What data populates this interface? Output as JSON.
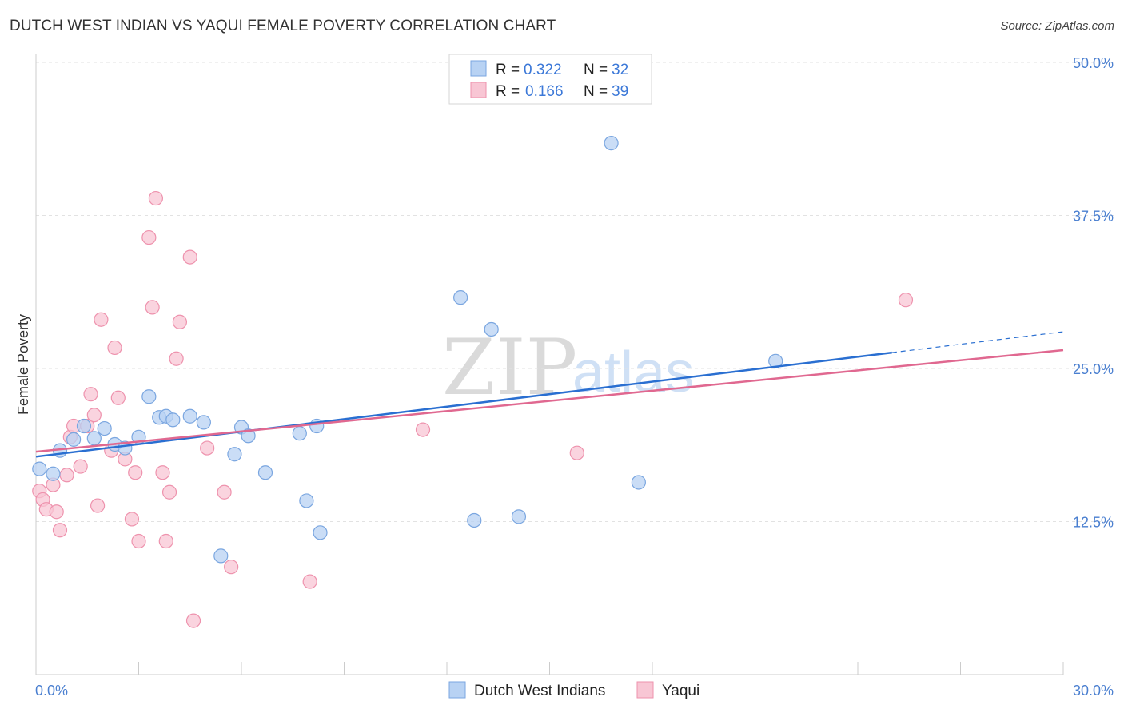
{
  "title": "DUTCH WEST INDIAN VS YAQUI FEMALE POVERTY CORRELATION CHART",
  "source": "Source: ZipAtlas.com",
  "watermark": {
    "zip": "ZIP",
    "atlas": "atlas"
  },
  "colors": {
    "blue_fill": "#b8d2f3",
    "blue_stroke": "#7aa6e0",
    "blue_line": "#2a6fd1",
    "pink_fill": "#f8c6d4",
    "pink_stroke": "#ee92ad",
    "pink_line": "#e06890",
    "grid": "#e2e2e2",
    "axis_text": "#4a7fd0"
  },
  "legend": {
    "rows": [
      {
        "r_label": "R = ",
        "r_value": "0.322",
        "n_label": "N = ",
        "n_value": "32"
      },
      {
        "r_label": "R = ",
        "r_value": "0.166",
        "n_label": "N = ",
        "n_value": "39"
      }
    ]
  },
  "chart_data": {
    "type": "scatter",
    "title": "DUTCH WEST INDIAN VS YAQUI FEMALE POVERTY CORRELATION CHART",
    "xlabel": "",
    "ylabel": "Female Poverty",
    "xlim": [
      0,
      30
    ],
    "ylim": [
      0,
      50
    ],
    "x_tick_labels": [
      "0.0%",
      "30.0%"
    ],
    "y_ticks": [
      12.5,
      25.0,
      37.5,
      50.0
    ],
    "y_tick_labels": [
      "12.5%",
      "25.0%",
      "37.5%",
      "50.0%"
    ],
    "grid": true,
    "legend_position": "top-center",
    "series": [
      {
        "name": "Dutch West Indians",
        "color": "#b8d2f3",
        "R": 0.322,
        "N": 32,
        "trend": {
          "x0": 0,
          "y0": 17.8,
          "x1": 25,
          "y1": 26.3,
          "dash_to_x": 30,
          "dash_to_y": 28.0
        },
        "points": [
          [
            0.1,
            16.8
          ],
          [
            0.5,
            16.4
          ],
          [
            0.7,
            18.3
          ],
          [
            1.1,
            19.2
          ],
          [
            1.4,
            20.3
          ],
          [
            1.7,
            19.3
          ],
          [
            2.0,
            20.1
          ],
          [
            2.3,
            18.8
          ],
          [
            2.6,
            18.5
          ],
          [
            3.0,
            19.4
          ],
          [
            3.3,
            22.7
          ],
          [
            3.6,
            21.0
          ],
          [
            3.8,
            21.1
          ],
          [
            4.0,
            20.8
          ],
          [
            4.5,
            21.1
          ],
          [
            4.9,
            20.6
          ],
          [
            5.4,
            9.7
          ],
          [
            5.8,
            18.0
          ],
          [
            6.0,
            20.2
          ],
          [
            6.2,
            19.5
          ],
          [
            6.7,
            16.5
          ],
          [
            7.7,
            19.7
          ],
          [
            7.9,
            14.2
          ],
          [
            8.2,
            20.3
          ],
          [
            8.3,
            11.6
          ],
          [
            12.4,
            30.8
          ],
          [
            12.8,
            12.6
          ],
          [
            13.3,
            28.2
          ],
          [
            14.1,
            12.9
          ],
          [
            16.8,
            43.4
          ],
          [
            17.6,
            15.7
          ],
          [
            21.6,
            25.6
          ]
        ]
      },
      {
        "name": "Yaqui",
        "color": "#f8c6d4",
        "R": 0.166,
        "N": 39,
        "trend": {
          "x0": 0,
          "y0": 18.2,
          "x1": 30,
          "y1": 26.5
        },
        "points": [
          [
            0.1,
            15.0
          ],
          [
            0.2,
            14.3
          ],
          [
            0.3,
            13.5
          ],
          [
            0.5,
            15.5
          ],
          [
            0.6,
            13.3
          ],
          [
            0.7,
            11.8
          ],
          [
            0.9,
            16.3
          ],
          [
            1.0,
            19.4
          ],
          [
            1.1,
            20.3
          ],
          [
            1.3,
            17.0
          ],
          [
            1.5,
            20.3
          ],
          [
            1.6,
            22.9
          ],
          [
            1.7,
            21.2
          ],
          [
            1.8,
            13.8
          ],
          [
            1.9,
            29.0
          ],
          [
            2.2,
            18.3
          ],
          [
            2.3,
            26.7
          ],
          [
            2.4,
            22.6
          ],
          [
            2.6,
            17.6
          ],
          [
            2.8,
            12.7
          ],
          [
            2.9,
            16.5
          ],
          [
            3.0,
            10.9
          ],
          [
            3.3,
            35.7
          ],
          [
            3.4,
            30.0
          ],
          [
            3.5,
            38.9
          ],
          [
            3.7,
            16.5
          ],
          [
            3.8,
            10.9
          ],
          [
            3.9,
            14.9
          ],
          [
            4.1,
            25.8
          ],
          [
            4.2,
            28.8
          ],
          [
            4.5,
            34.1
          ],
          [
            4.6,
            4.4
          ],
          [
            5.0,
            18.5
          ],
          [
            5.5,
            14.9
          ],
          [
            5.7,
            8.8
          ],
          [
            8.0,
            7.6
          ],
          [
            11.3,
            20.0
          ],
          [
            15.8,
            18.1
          ],
          [
            25.4,
            30.6
          ]
        ]
      }
    ]
  }
}
